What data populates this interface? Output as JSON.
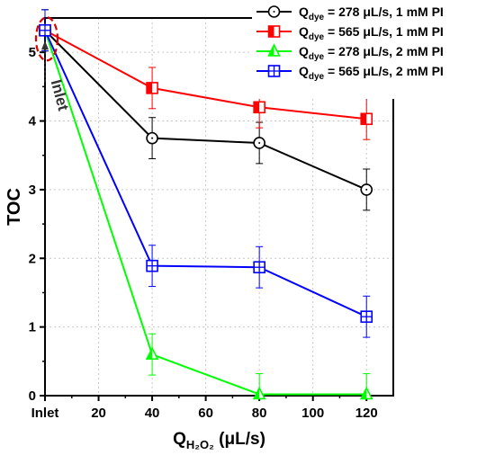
{
  "chart_data": {
    "type": "line",
    "xlabel_base": "Q",
    "xlabel_sub": "H₂O₂",
    "xlabel_unit": " (μL/s)",
    "ylabel": "TOC",
    "xlim": [
      0,
      130
    ],
    "ylim": [
      0,
      5.5
    ],
    "x_ticks": [
      {
        "value": 0,
        "label": "Inlet"
      },
      {
        "value": 20,
        "label": "20"
      },
      {
        "value": 40,
        "label": "40"
      },
      {
        "value": 60,
        "label": "60"
      },
      {
        "value": 80,
        "label": "80"
      },
      {
        "value": 100,
        "label": "100"
      },
      {
        "value": 120,
        "label": "120"
      }
    ],
    "y_ticks": [
      {
        "value": 0,
        "label": "0"
      },
      {
        "value": 1,
        "label": "1"
      },
      {
        "value": 2,
        "label": "2"
      },
      {
        "value": 3,
        "label": "3"
      },
      {
        "value": 4,
        "label": "4"
      },
      {
        "value": 5,
        "label": "5"
      }
    ],
    "grid": true,
    "legend_position": "top-right",
    "annotation": {
      "text": "Inlet",
      "target": {
        "x": 0,
        "y": 5.3
      }
    },
    "series": [
      {
        "label_prefix": "Q",
        "label_sub": "dye",
        "label_suffix": " = 278 μL/s, 1 mM PI",
        "color": "#000000",
        "marker": "circle",
        "x": [
          0,
          40,
          80,
          120
        ],
        "y": [
          5.32,
          3.75,
          3.68,
          3.0
        ],
        "err": [
          0.3,
          0.3,
          0.3,
          0.3
        ]
      },
      {
        "label_prefix": "Q",
        "label_sub": "dye",
        "label_suffix": " = 565 μL/s, 1 mM PI",
        "color": "#ff0000",
        "marker": "square",
        "x": [
          0,
          40,
          80,
          120
        ],
        "y": [
          5.32,
          4.48,
          4.2,
          4.03
        ],
        "err": [
          0.3,
          0.3,
          0.3,
          0.3
        ]
      },
      {
        "label_prefix": "Q",
        "label_sub": "dye",
        "label_suffix": " = 278 μL/s, 2 mM PI",
        "color": "#00ff00",
        "marker": "triangle",
        "x": [
          0,
          40,
          80,
          120
        ],
        "y": [
          5.32,
          0.6,
          0.02,
          0.02
        ],
        "err": [
          0.3,
          0.3,
          0.3,
          0.3
        ]
      },
      {
        "label_prefix": "Q",
        "label_sub": "dye",
        "label_suffix": " = 565 μL/s, 2 mM PI",
        "color": "#0000ff",
        "marker": "crosssquare",
        "x": [
          0,
          40,
          80,
          120
        ],
        "y": [
          5.32,
          1.89,
          1.87,
          1.15
        ],
        "err": [
          0.3,
          0.3,
          0.3,
          0.3
        ]
      }
    ]
  }
}
